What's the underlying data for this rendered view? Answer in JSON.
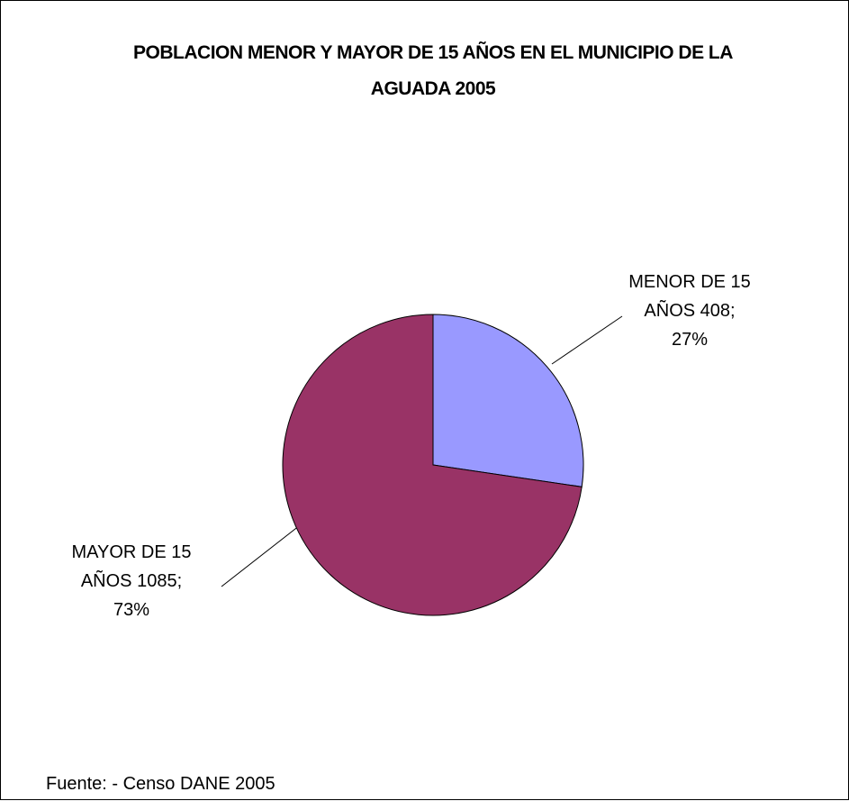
{
  "chart_data": {
    "type": "pie",
    "title": "POBLACION MENOR Y MAYOR DE 15 AÑOS EN EL MUNICIPIO DE LA AGUADA  2005",
    "categories": [
      "MENOR DE 15 AÑOS",
      "MAYOR DE 15 AÑOS"
    ],
    "values": [
      408,
      1085
    ],
    "value_labels": [
      "408;",
      "1085;"
    ],
    "percents": [
      27,
      73
    ],
    "percent_labels": [
      "27%",
      "73%"
    ],
    "colors": [
      "#9999ff",
      "#993366"
    ],
    "source": "Fuente:  - Censo DANE 2005"
  }
}
